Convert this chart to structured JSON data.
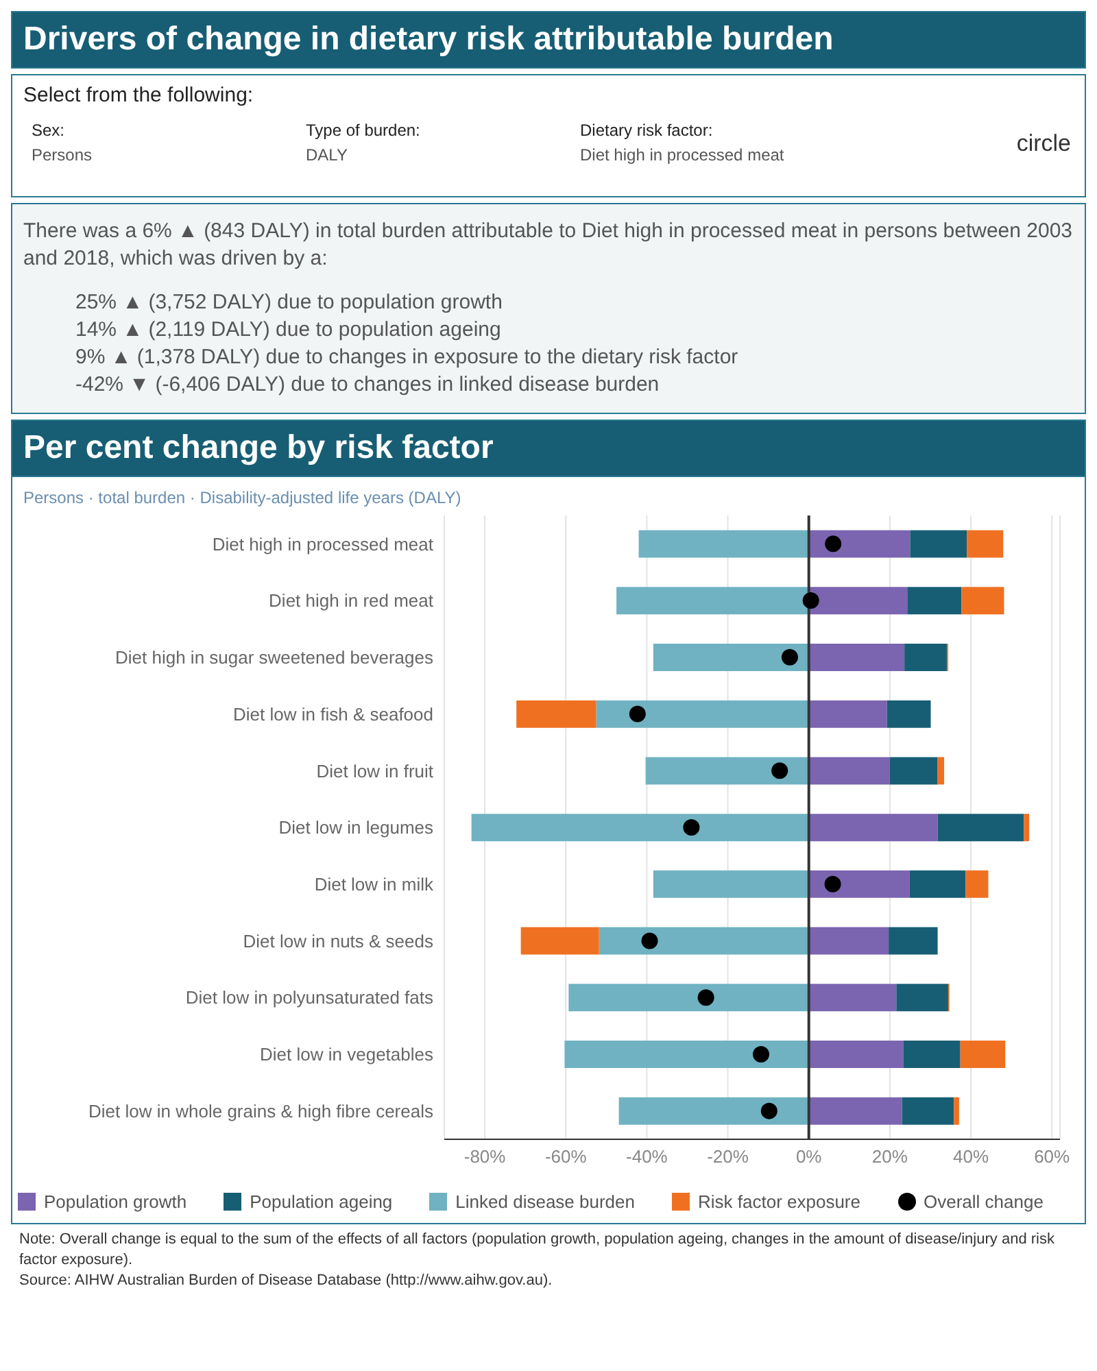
{
  "chart_data": {
    "type": "bar",
    "orientation": "horizontal",
    "stacked": true,
    "title": "Drivers of change in dietary risk attributable burden",
    "subtitle": "Per cent change by risk factor",
    "annotations": [
      "Select from the following:",
      "Sex:",
      "Persons",
      "Type of burden:",
      "DALY",
      "Dietary risk factor:",
      "Diet high in processed meat",
      "circle",
      "There was a 6% ▲ (843 DALY) in total burden attributable to Diet high in processed meat in persons between 2003 and 2018, which was driven by a:",
      "25% ▲ (3,752 DALY) due to population growth",
      "14% ▲ (2,119 DALY) due to population ageing",
      "9% ▲ (1,378 DALY) due to changes in exposure to the dietary risk factor",
      "-42% ▼ (-6,406 DALY) due to changes in linked disease burden",
      "Persons · total burden · Disability-adjusted life years (DALY)",
      "Note: Overall change is equal to the sum of the effects of all factors (population growth, population ageing, changes in the amount of disease/injury and risk factor exposure).",
      "Source: AIHW Australian Burden of Disease Database (http://www.aihw.gov.au)."
    ],
    "categories": [
      "Diet high in processed meat",
      "Diet high in red meat",
      "Diet high in sugar sweetened beverages",
      "Diet low in fish & seafood",
      "Diet low in fruit",
      "Diet low in legumes",
      "Diet low in milk",
      "Diet low in nuts & seeds",
      "Diet low in polyunsaturated fats",
      "Diet low in vegetables",
      "Diet low in whole grains & high fibre cereals"
    ],
    "series": [
      {
        "name": "Population growth",
        "color": "#7b64b0",
        "values": [
          25,
          24.3,
          23.6,
          19.3,
          20,
          31.8,
          24.9,
          19.7,
          21.6,
          23.3,
          23
        ]
      },
      {
        "name": "Population ageing",
        "color": "#175e74",
        "values": [
          14,
          13.4,
          10.5,
          10.8,
          11.8,
          21.3,
          13.8,
          12.1,
          12.8,
          14.1,
          12.8
        ]
      },
      {
        "name": "Linked disease burden",
        "color": "#70b2c2",
        "values": [
          -42,
          -47.5,
          -38.4,
          -52.5,
          -40.3,
          -83.3,
          -38.4,
          -51.8,
          -59.3,
          -60.3,
          -46.9
        ]
      },
      {
        "name": "Risk factor exposure",
        "color": "#f07022",
        "values": [
          9,
          10.5,
          0.3,
          -19.7,
          1.6,
          1.3,
          5.6,
          -19.3,
          0.3,
          11.1,
          1.3
        ]
      },
      {
        "name": "Overall change",
        "type": "scatter",
        "color": "#000000",
        "values": [
          6,
          0.5,
          -4.7,
          -42.3,
          -7.2,
          -29,
          5.9,
          -39.3,
          -25.4,
          -11.8,
          -9.8
        ]
      }
    ],
    "xlim": [
      -90,
      62
    ],
    "xticks": [
      {
        "value": -80,
        "label": "-80%"
      },
      {
        "value": -60,
        "label": "-60%"
      },
      {
        "value": -40,
        "label": "-40%"
      },
      {
        "value": -20,
        "label": "-20%"
      },
      {
        "value": 0,
        "label": "0%"
      },
      {
        "value": 20,
        "label": "20%"
      },
      {
        "value": 40,
        "label": "40%"
      },
      {
        "value": 60,
        "label": "60%"
      }
    ],
    "ref_lines": [
      {
        "axis": "x",
        "value": 0,
        "color": "#333333"
      }
    ],
    "grid": "x",
    "legend": "bottom",
    "marker": "circle"
  }
}
